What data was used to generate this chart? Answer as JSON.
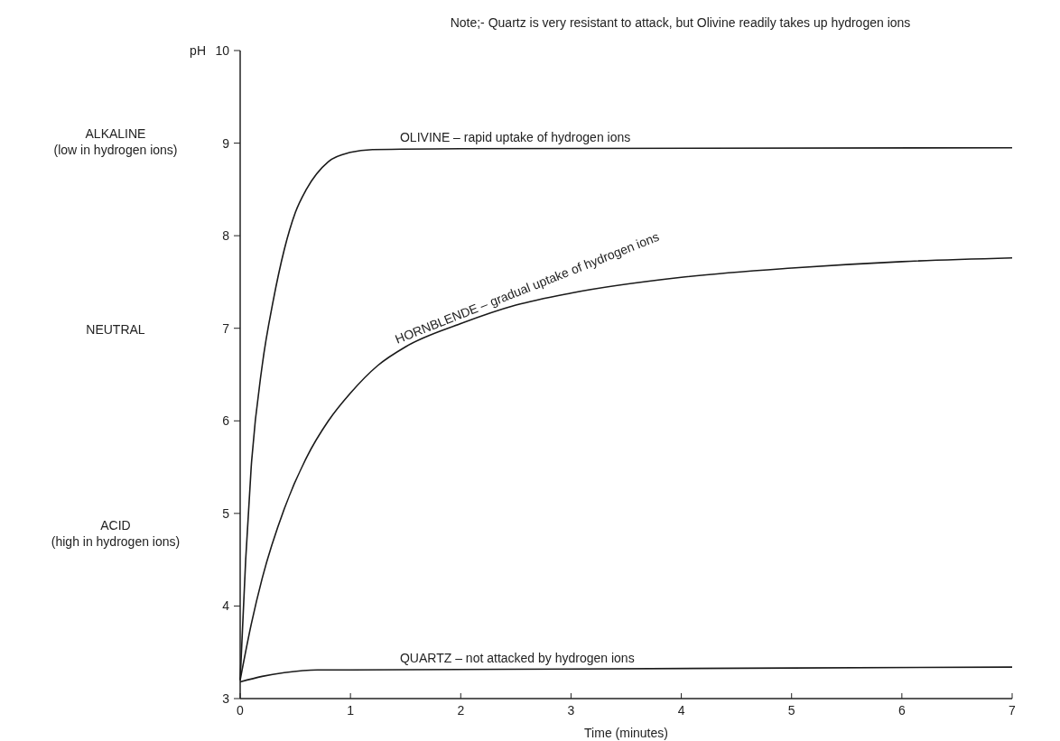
{
  "chart_data": {
    "type": "line",
    "title": "Note;- Quartz is very resistant to attack, but Olivine readily takes up hydrogen ions",
    "xlabel": "Time (minutes)",
    "ylabel": "pH",
    "xlim": [
      0,
      7
    ],
    "xticks": [
      0,
      1,
      2,
      3,
      4,
      5,
      6,
      7
    ],
    "ylim": [
      3,
      10
    ],
    "yticks": [
      3,
      4,
      5,
      6,
      7,
      8,
      9,
      10
    ],
    "grid": false,
    "marker": "none",
    "line_style": "solid",
    "series": [
      {
        "name": "OLIVINE – rapid uptake of hydrogen ions",
        "color": "#1a1a1a",
        "x": [
          0,
          0.05,
          0.1,
          0.2,
          0.3,
          0.4,
          0.5,
          0.6,
          0.8,
          1.0,
          1.2,
          2,
          7
        ],
        "values": [
          3.2,
          4.5,
          5.5,
          6.6,
          7.3,
          7.85,
          8.25,
          8.5,
          8.8,
          8.9,
          8.93,
          8.94,
          8.95
        ]
      },
      {
        "name": "HORNBLENDE – gradual uptake of hydrogen ions",
        "color": "#1a1a1a",
        "x": [
          0,
          0.1,
          0.2,
          0.4,
          0.6,
          0.8,
          1.0,
          1.25,
          1.5,
          2,
          2.5,
          3,
          4,
          5,
          6,
          7
        ],
        "values": [
          3.2,
          3.8,
          4.3,
          5.05,
          5.6,
          6.0,
          6.3,
          6.6,
          6.8,
          7.05,
          7.25,
          7.38,
          7.55,
          7.65,
          7.72,
          7.76
        ]
      },
      {
        "name": "QUARTZ – not attacked by hydrogen ions",
        "color": "#1a1a1a",
        "x": [
          0,
          0.2,
          0.4,
          0.7,
          1,
          3,
          7
        ],
        "values": [
          3.18,
          3.24,
          3.28,
          3.31,
          3.31,
          3.32,
          3.34
        ]
      }
    ],
    "annotations": [
      "ALKALINE\n(low in hydrogen ions)",
      "NEUTRAL",
      "ACID\n(high in hydrogen ions)"
    ]
  }
}
